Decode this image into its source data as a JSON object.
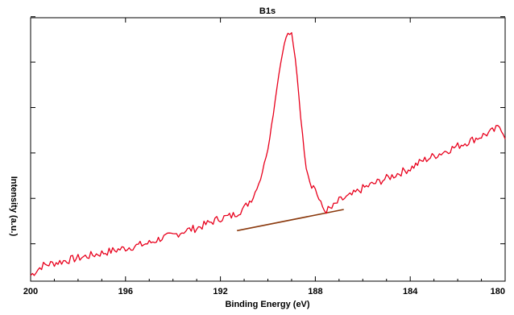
{
  "chart_data": {
    "type": "line",
    "title": "B1s",
    "xlabel": "Binding Energy (eV)",
    "ylabel": "Intensity (a.u.)",
    "x_reversed": true,
    "xlim": [
      200,
      180
    ],
    "ylim": [
      0,
      100
    ],
    "x_ticks": [
      {
        "value": 200,
        "label": "200"
      },
      {
        "value": 196,
        "label": "196"
      },
      {
        "value": 192,
        "label": "192"
      },
      {
        "value": 188,
        "label": "188"
      },
      {
        "value": 184,
        "label": "184"
      },
      {
        "value": 180,
        "label": "180"
      }
    ],
    "y_ticks_count": 6,
    "grid": false,
    "colors": {
      "spectrum": "#e8001c",
      "background": "#8b3a0e"
    },
    "series": [
      {
        "x": [
          200.0,
          199.5,
          199.0,
          198.5,
          198.0,
          197.5,
          197.0,
          196.5,
          196.0,
          195.5,
          195.0,
          194.5,
          194.0,
          193.5,
          193.0,
          192.5,
          192.0,
          191.5,
          191.0,
          190.6,
          190.3,
          190.0,
          189.8,
          189.6,
          189.4,
          189.2,
          189.0,
          188.8,
          188.6,
          188.4,
          188.2,
          188.0,
          187.8,
          187.6,
          187.3,
          187.0,
          186.5,
          186.0,
          185.5,
          185.0,
          184.5,
          184.0,
          183.5,
          183.0,
          182.5,
          182.0,
          181.5,
          181.0,
          180.5,
          180.2,
          180.0
        ],
        "values": [
          1,
          5,
          6,
          7,
          8,
          9,
          10,
          11,
          12,
          13,
          14,
          16,
          17,
          19,
          20,
          22,
          24,
          25,
          28,
          33,
          40,
          52,
          64,
          78,
          90,
          98,
          98,
          85,
          63,
          45,
          38,
          36,
          30,
          27,
          28,
          31,
          33,
          36,
          38,
          40,
          42,
          44,
          47,
          49,
          51,
          53,
          55,
          57,
          59,
          61,
          57
        ]
      }
    ],
    "background_line": {
      "x": [
        191.3,
        186.8
      ],
      "values": [
        19.0,
        27.5
      ]
    }
  }
}
